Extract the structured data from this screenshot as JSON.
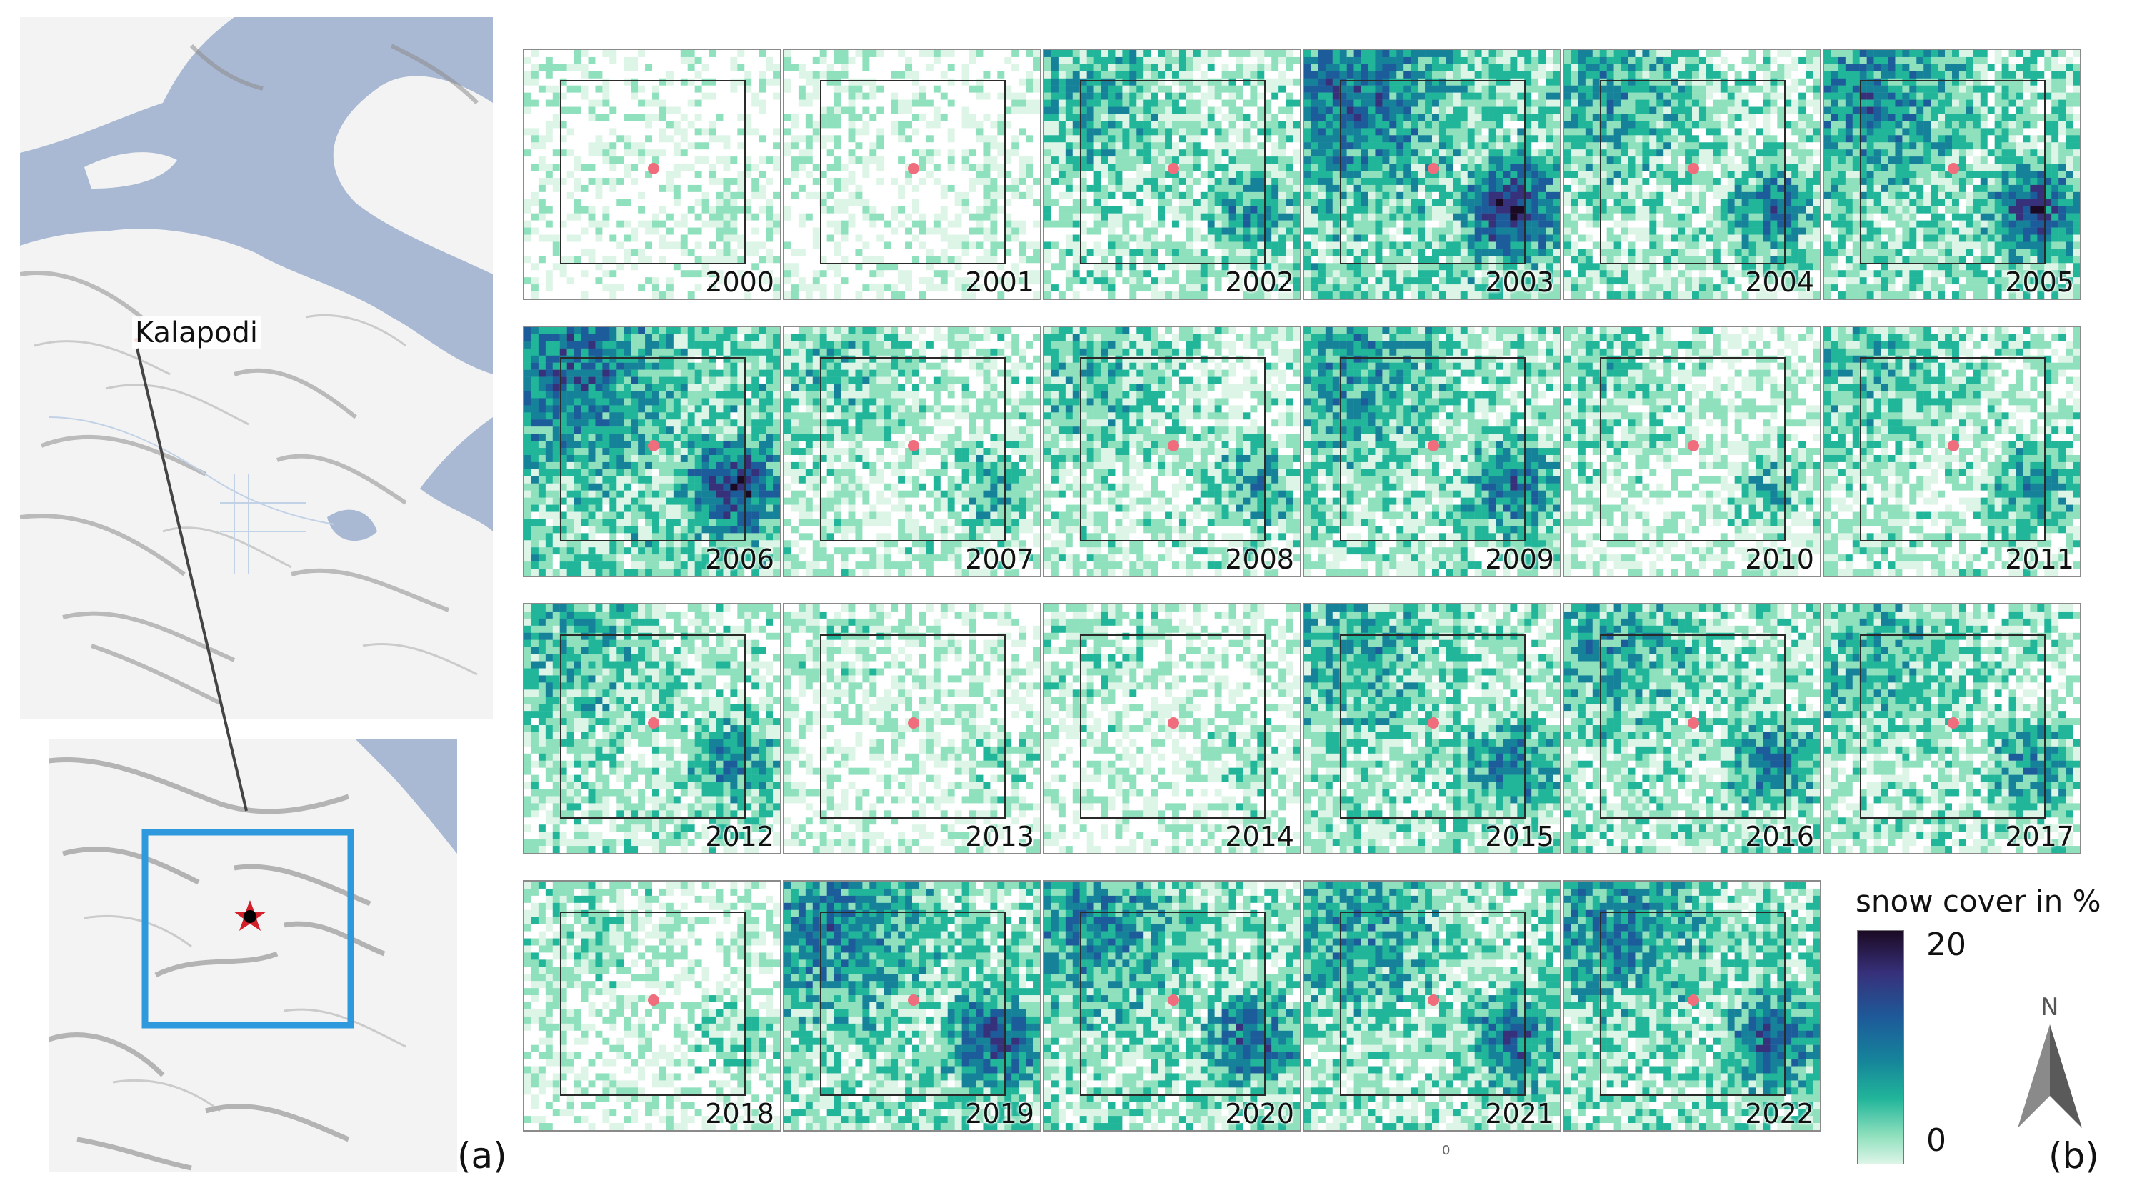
{
  "overview": {
    "place_label": "Kalapodi",
    "panel_a": "(a)",
    "panel_b": "(b)",
    "colors": {
      "water": "#a9b9d3",
      "land": "#f3f3f3",
      "study_box": "#2f99de",
      "site_marker": "#d41f2b"
    }
  },
  "years": [
    "2000",
    "2001",
    "2002",
    "2003",
    "2004",
    "2005",
    "2006",
    "2007",
    "2008",
    "2009",
    "2010",
    "2011",
    "2012",
    "2013",
    "2014",
    "2015",
    "2016",
    "2017",
    "2018",
    "2019",
    "2020",
    "2021",
    "2022"
  ],
  "year_intensity": [
    0.15,
    0.15,
    0.55,
    0.85,
    0.6,
    0.75,
    0.85,
    0.45,
    0.5,
    0.65,
    0.4,
    0.5,
    0.55,
    0.25,
    0.3,
    0.6,
    0.6,
    0.55,
    0.3,
    0.75,
    0.7,
    0.65,
    0.7
  ],
  "legend": {
    "title": "snow cover in %",
    "max": "20",
    "min": "0",
    "colors": [
      "#1b0a24",
      "#37307a",
      "#1d5c9a",
      "#15829a",
      "#21b59a",
      "#8fe0bd",
      "#ddf5e7"
    ]
  },
  "north_label": "N",
  "scale_mark": "0"
}
